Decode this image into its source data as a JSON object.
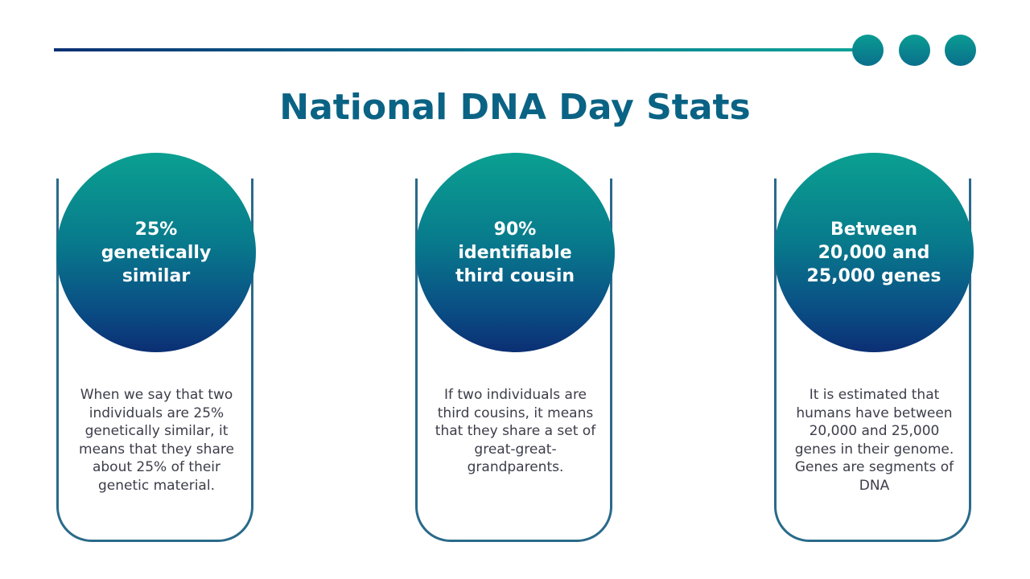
{
  "title": "National DNA Day Stats",
  "colors": {
    "accent_teal": "#0ba091",
    "accent_navy": "#0b2f73",
    "title": "#0a6384",
    "card_border": "#2a6a8a"
  },
  "stats": [
    {
      "headline": "25% genetically similar",
      "description": "When we say that two individuals are 25% genetically similar, it means that they share about 25% of their genetic material."
    },
    {
      "headline": "90% identifiable third cousin",
      "description": "If two individuals are third cousins, it means that they share a set of great-great-grandparents."
    },
    {
      "headline": "Between 20,000 and 25,000 genes",
      "description": "It is estimated that humans have between 20,000 and 25,000 genes in their genome. Genes are segments of DNA"
    }
  ]
}
